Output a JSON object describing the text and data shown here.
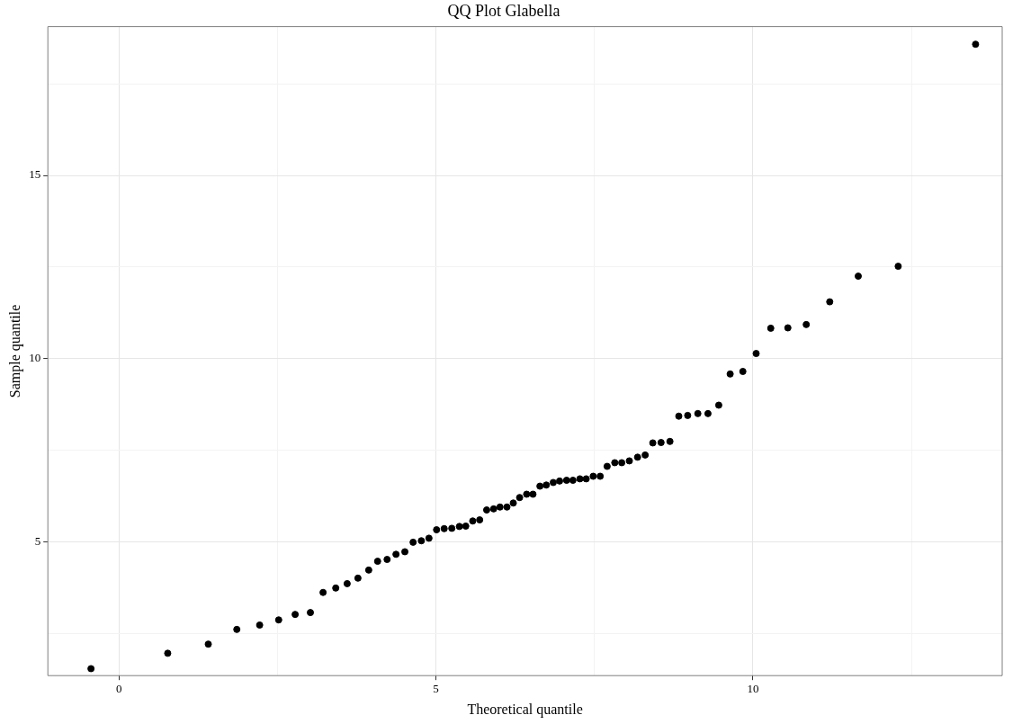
{
  "chart_data": {
    "type": "scatter",
    "title": "QQ Plot Glabella",
    "xlabel": "Theoretical quantile",
    "ylabel": "Sample quantile",
    "x": [
      -0.44,
      0.77,
      1.41,
      1.86,
      2.22,
      2.52,
      2.78,
      3.02,
      3.22,
      3.42,
      3.6,
      3.77,
      3.94,
      4.08,
      4.23,
      4.37,
      4.51,
      4.64,
      4.77,
      4.89,
      5.01,
      5.13,
      5.25,
      5.37,
      5.47,
      5.58,
      5.69,
      5.8,
      5.91,
      6.01,
      6.12,
      6.22,
      6.32,
      6.43,
      6.53,
      6.64,
      6.74,
      6.85,
      6.95,
      7.06,
      7.16,
      7.27,
      7.37,
      7.48,
      7.59,
      7.7,
      7.82,
      7.93,
      8.05,
      8.18,
      8.3,
      8.42,
      8.55,
      8.69,
      8.83,
      8.97,
      9.13,
      9.29,
      9.46,
      9.64,
      9.84,
      10.05,
      10.28,
      10.55,
      10.84,
      11.21,
      11.66,
      12.29,
      13.51
    ],
    "series": [
      {
        "color": "#000000",
        "values": [
          1.54,
          1.96,
          2.21,
          2.61,
          2.73,
          2.87,
          3.02,
          3.07,
          3.62,
          3.74,
          3.86,
          4.01,
          4.23,
          4.47,
          4.52,
          4.66,
          4.73,
          4.99,
          5.03,
          5.1,
          5.33,
          5.36,
          5.37,
          5.42,
          5.43,
          5.57,
          5.6,
          5.87,
          5.9,
          5.95,
          5.95,
          6.06,
          6.21,
          6.3,
          6.3,
          6.52,
          6.55,
          6.62,
          6.66,
          6.68,
          6.68,
          6.72,
          6.72,
          6.79,
          6.79,
          7.06,
          7.16,
          7.16,
          7.21,
          7.31,
          7.37,
          7.7,
          7.71,
          7.74,
          8.43,
          8.45,
          8.5,
          8.5,
          8.73,
          9.58,
          9.65,
          10.14,
          10.83,
          10.84,
          10.93,
          11.55,
          12.25,
          12.52,
          18.58
        ]
      }
    ],
    "xlim": [
      -1.12,
      13.93
    ],
    "ylim": [
      1.35,
      19.06
    ],
    "xticks": [
      0,
      {
        "value": 2.5,
        "label": null
      },
      5,
      {
        "value": 7.5,
        "label": null
      },
      10,
      {
        "value": 12.5,
        "label": null
      }
    ],
    "yticks": [
      {
        "value": 2.5,
        "label": null
      },
      5,
      {
        "value": 7.5,
        "label": null
      },
      10,
      {
        "value": 12.5,
        "label": null
      },
      15,
      {
        "value": 17.5,
        "label": null
      }
    ],
    "grid": true,
    "legend": false,
    "marker": "circle"
  }
}
